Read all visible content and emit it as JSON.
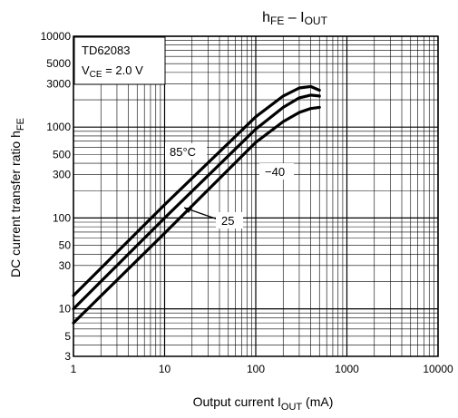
{
  "chart_data": {
    "type": "line",
    "title": {
      "main": "h",
      "sub": "FE",
      "dash": " – I",
      "sub2": "OUT"
    },
    "xlabel": {
      "pre": "Output current   I",
      "sub": "OUT",
      "post": "   (mA)"
    },
    "ylabel": {
      "pre": "DC current transfer ratio   h",
      "sub": "FE"
    },
    "xscale": "log",
    "yscale": "log",
    "xlim": [
      1,
      10000
    ],
    "ylim": [
      3,
      10000
    ],
    "grid": true,
    "x_tick_labels": [
      {
        "v": 1,
        "label": "1"
      },
      {
        "v": 10,
        "label": "10"
      },
      {
        "v": 100,
        "label": "100"
      },
      {
        "v": 1000,
        "label": "1000"
      },
      {
        "v": 10000,
        "label": "10000"
      }
    ],
    "y_tick_labels": [
      {
        "v": 3,
        "label": "3"
      },
      {
        "v": 5,
        "label": "5"
      },
      {
        "v": 10,
        "label": "10"
      },
      {
        "v": 30,
        "label": "30"
      },
      {
        "v": 50,
        "label": "50"
      },
      {
        "v": 100,
        "label": "100"
      },
      {
        "v": 300,
        "label": "300"
      },
      {
        "v": 500,
        "label": "500"
      },
      {
        "v": 1000,
        "label": "1000"
      },
      {
        "v": 3000,
        "label": "3000"
      },
      {
        "v": 5000,
        "label": "5000"
      },
      {
        "v": 10000,
        "label": "10000"
      }
    ],
    "info_box": {
      "device": "TD62083",
      "condition_pre": "V",
      "condition_sub": "CE",
      "condition_post": " = 2.0 V"
    },
    "series": [
      {
        "label": "85°C",
        "x": [
          1,
          10,
          100,
          200,
          300,
          400,
          500
        ],
        "y": [
          14,
          140,
          1300,
          2200,
          2700,
          2800,
          2550
        ]
      },
      {
        "label": "25",
        "x": [
          1,
          10,
          100,
          200,
          300,
          400,
          500
        ],
        "y": [
          10,
          100,
          950,
          1650,
          2100,
          2250,
          2200
        ]
      },
      {
        "label": "−40",
        "x": [
          1,
          10,
          100,
          200,
          300,
          400,
          500
        ],
        "y": [
          7,
          68,
          680,
          1150,
          1450,
          1600,
          1650
        ]
      }
    ]
  }
}
